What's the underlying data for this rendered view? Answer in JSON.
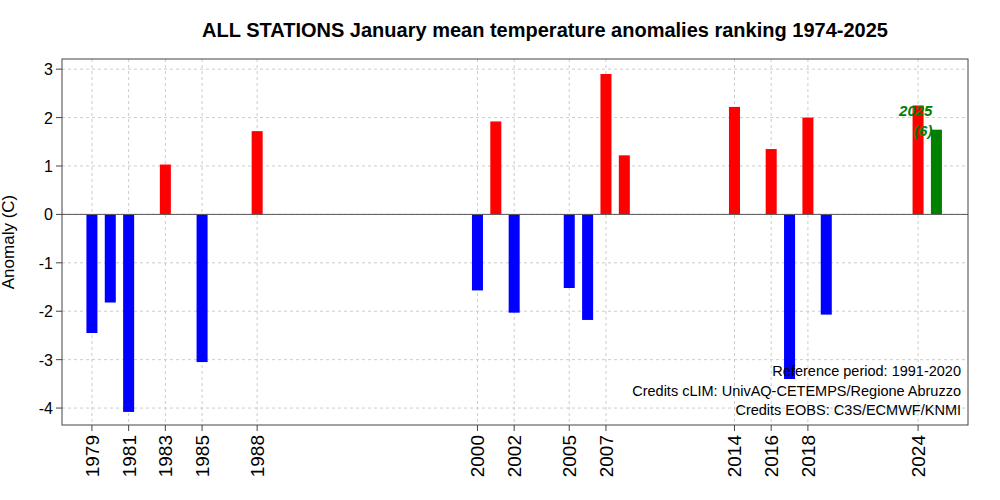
{
  "chart_data": {
    "type": "bar",
    "title": "ALL STATIONS January mean temperature anomalies ranking 1974-2025",
    "y_label": "Anomaly (C)",
    "x": [
      1979,
      1980,
      1981,
      1983,
      1985,
      1988,
      2000,
      2001,
      2002,
      2005,
      2006,
      2007,
      2008,
      2014,
      2016,
      2017,
      2018,
      2019,
      2024,
      2025
    ],
    "values": [
      -2.45,
      -1.82,
      -4.08,
      1.03,
      -3.05,
      1.72,
      -1.57,
      1.92,
      -2.03,
      -1.52,
      -2.18,
      2.9,
      1.22,
      2.22,
      1.35,
      -3.4,
      2.0,
      -2.07,
      2.25,
      1.75
    ],
    "colors": [
      "#0000ff",
      "#0000ff",
      "#0000ff",
      "#ff0000",
      "#0000ff",
      "#ff0000",
      "#0000ff",
      "#ff0000",
      "#0000ff",
      "#0000ff",
      "#0000ff",
      "#ff0000",
      "#ff0000",
      "#ff0000",
      "#ff0000",
      "#0000ff",
      "#ff0000",
      "#0000ff",
      "#ff0000",
      "#008000"
    ],
    "xlim": [
      1977.37,
      2026.72
    ],
    "xticks": [
      1979,
      1981,
      1983,
      1985,
      1988,
      2000,
      2002,
      2005,
      2007,
      2014,
      2016,
      2018,
      2024
    ],
    "ylim": [
      -4.35,
      3.21
    ],
    "yticks": [
      -4,
      -3,
      -2,
      -1,
      0,
      1,
      2,
      3
    ],
    "grid": true,
    "annotations": [
      "2025",
      "(6)",
      "Reference period: 1991-2020",
      "Credits cLIM: UnivAQ-CETEMPS/Regione Abruzzo",
      "Credits EOBS: C3S/ECMWF/KNMI"
    ]
  }
}
